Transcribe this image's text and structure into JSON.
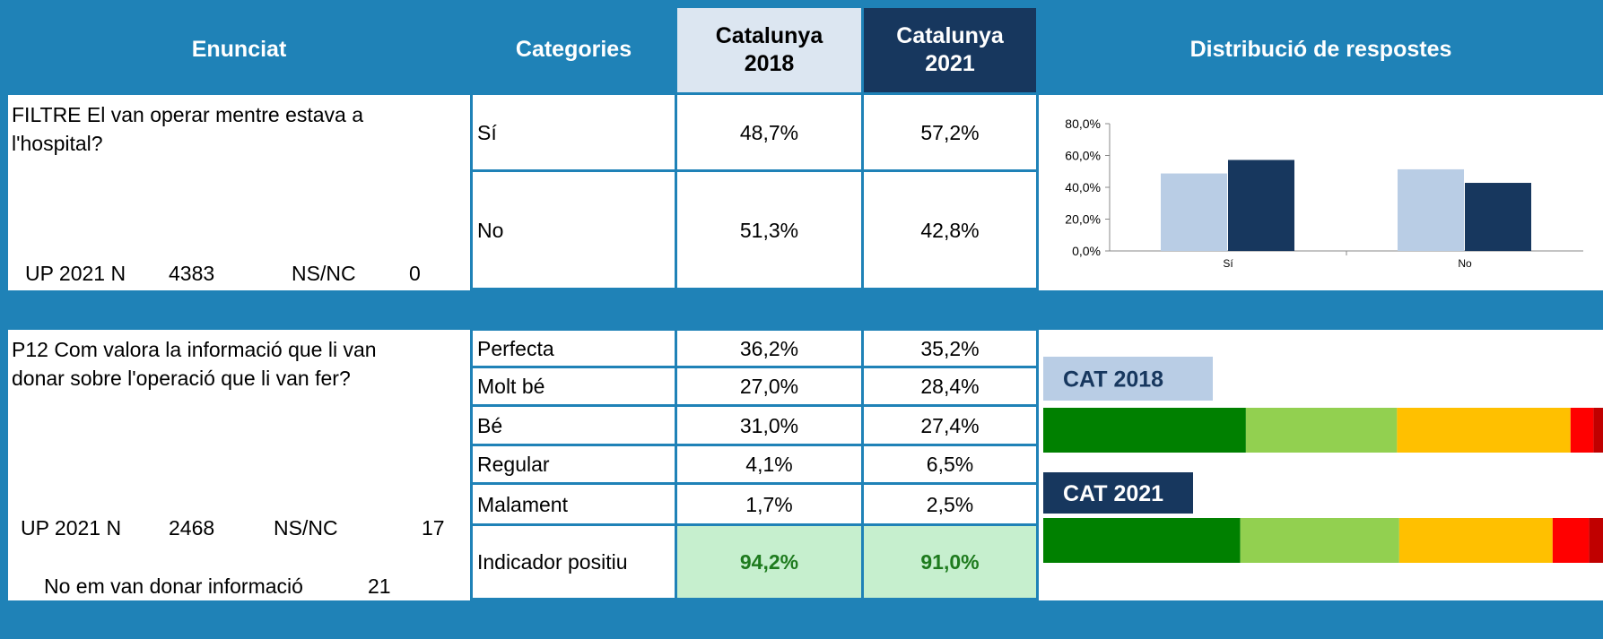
{
  "header": {
    "enunciat": "Enunciat",
    "categories": "Categories",
    "cat2018": "Catalunya 2018",
    "cat2021": "Catalunya 2021",
    "distribucio": "Distribució de respostes"
  },
  "sections": [
    {
      "question": "FILTRE El van operar mentre estava a l'hospital?",
      "stats": [
        "UP 2021 N",
        "4383",
        "NS/NC",
        "0"
      ],
      "rows": [
        {
          "category": "Sí",
          "v2018": "48,7%",
          "v2021": "57,2%"
        },
        {
          "category": "No",
          "v2018": "51,3%",
          "v2021": "42,8%"
        }
      ]
    },
    {
      "question": "P12 Com valora la informació que li van donar sobre l'operació que li van fer?",
      "stats": [
        "UP 2021 N",
        "2468",
        "NS/NC",
        "17",
        "No em van donar informació",
        "21"
      ],
      "rows": [
        {
          "category": "Perfecta",
          "v2018": "36,2%",
          "v2021": "35,2%"
        },
        {
          "category": "Molt bé",
          "v2018": "27,0%",
          "v2021": "28,4%"
        },
        {
          "category": "Bé",
          "v2018": "31,0%",
          "v2021": "27,4%"
        },
        {
          "category": "Regular",
          "v2018": "4,1%",
          "v2021": "6,5%"
        },
        {
          "category": "Malament",
          "v2018": "1,7%",
          "v2021": "2,5%"
        },
        {
          "category": "Indicador positiu",
          "v2018": "94,2%",
          "v2021": "91,0%"
        }
      ]
    }
  ],
  "chart_data": [
    {
      "type": "bar",
      "categories": [
        "Sí",
        "No"
      ],
      "series": [
        {
          "color": "#b9cde5",
          "values": [
            48.7,
            51.3
          ]
        },
        {
          "color": "#17375e",
          "values": [
            57.2,
            42.8
          ]
        }
      ],
      "ylim": [
        0,
        80
      ],
      "yticks": [
        {
          "value": 0,
          "label": "0,0%"
        },
        {
          "value": 20,
          "label": "20,0%"
        },
        {
          "value": 40,
          "label": "40,0%"
        },
        {
          "value": 60,
          "label": "60,0%"
        },
        {
          "value": 80,
          "label": "80,0%"
        }
      ]
    },
    {
      "type": "stacked_barh",
      "categories": [
        "CAT 2018",
        "CAT 2021"
      ],
      "category_colors": [
        "#b9cde5",
        "#17375e"
      ],
      "series": [
        {
          "color": "#008000",
          "values": [
            36.2,
            35.2
          ]
        },
        {
          "color": "#92d050",
          "values": [
            27.0,
            28.4
          ]
        },
        {
          "color": "#ffc000",
          "values": [
            31.0,
            27.4
          ]
        },
        {
          "color": "#ff0000",
          "values": [
            4.1,
            6.5
          ]
        },
        {
          "color": "#c00000",
          "values": [
            1.7,
            2.5
          ]
        }
      ],
      "xlim": [
        0,
        100
      ]
    }
  ]
}
